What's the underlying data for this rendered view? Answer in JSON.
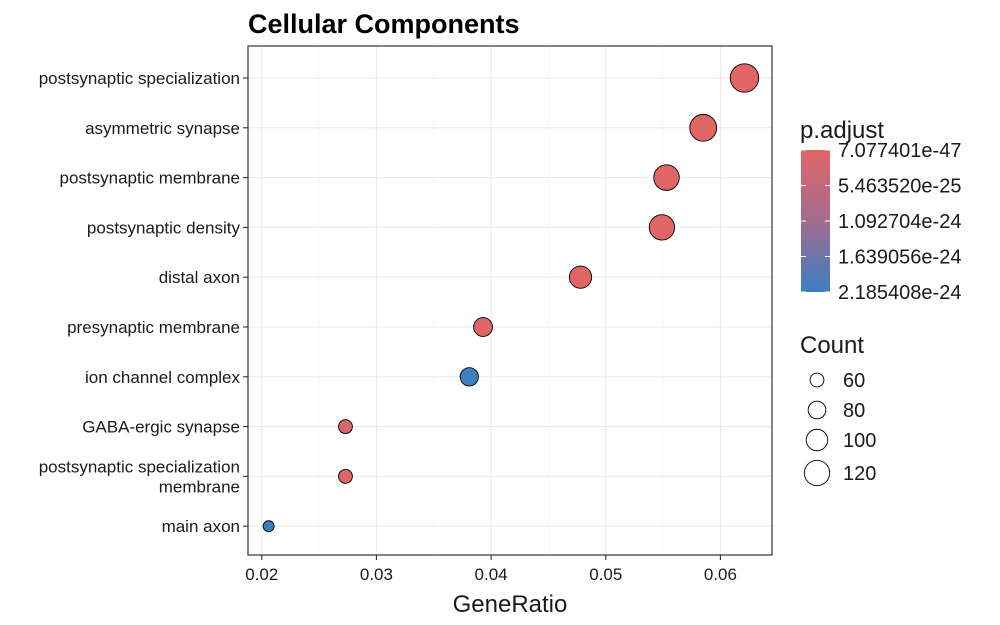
{
  "chart_data": {
    "type": "scatter",
    "title": "Cellular Components",
    "xlabel": "GeneRatio",
    "ylabel": "",
    "xlim": [
      0.0188,
      0.0645
    ],
    "x_ticks": [
      "0.02",
      "0.03",
      "0.04",
      "0.05",
      "0.06"
    ],
    "x_tick_values": [
      0.02,
      0.03,
      0.04,
      0.05,
      0.06
    ],
    "categories": [
      "postsynaptic specialization",
      "asymmetric synapse",
      "postsynaptic membrane",
      "postsynaptic density",
      "distal axon",
      "presynaptic membrane",
      "ion channel complex",
      "GABA-ergic synapse",
      "postsynaptic specialization membrane",
      "main axon"
    ],
    "category_lines": [
      [
        "postsynaptic specialization"
      ],
      [
        "asymmetric synapse"
      ],
      [
        "postsynaptic membrane"
      ],
      [
        "postsynaptic density"
      ],
      [
        "distal axon"
      ],
      [
        "presynaptic membrane"
      ],
      [
        "ion channel complex"
      ],
      [
        "GABA-ergic synapse"
      ],
      [
        "postsynaptic specialization",
        "membrane"
      ],
      [
        "main axon"
      ]
    ],
    "points": [
      {
        "category": "postsynaptic specialization",
        "x": 0.0621,
        "count": 136,
        "p_adjust": 7.1e-47
      },
      {
        "category": "asymmetric synapse",
        "x": 0.0585,
        "count": 128,
        "p_adjust": 1e-45
      },
      {
        "category": "postsynaptic membrane",
        "x": 0.0553,
        "count": 121,
        "p_adjust": 2e-40
      },
      {
        "category": "postsynaptic density",
        "x": 0.0549,
        "count": 120,
        "p_adjust": 1e-44
      },
      {
        "category": "distal axon",
        "x": 0.0478,
        "count": 104,
        "p_adjust": 1e-30
      },
      {
        "category": "presynaptic membrane",
        "x": 0.0393,
        "count": 86,
        "p_adjust": 1e-28
      },
      {
        "category": "ion channel complex",
        "x": 0.0381,
        "count": 83,
        "p_adjust": 2.1e-24
      },
      {
        "category": "GABA-ergic synapse",
        "x": 0.0273,
        "count": 60,
        "p_adjust": 1e-25
      },
      {
        "category": "postsynaptic specialization membrane",
        "x": 0.0273,
        "count": 60,
        "p_adjust": 5e-26
      },
      {
        "category": "main axon",
        "x": 0.0206,
        "count": 45,
        "p_adjust": 1e-22
      }
    ],
    "color_legend": {
      "title": "p.adjust",
      "labels": [
        "7.077401e-47",
        "5.463520e-25",
        "1.092704e-24",
        "1.639056e-24",
        "2.185408e-24"
      ],
      "min": 7.077401e-47,
      "max": 2.185408e-24,
      "low_color": "#e06666",
      "high_color": "#3a7fc1"
    },
    "size_legend": {
      "title": "Count",
      "values": [
        60,
        80,
        100,
        120
      ]
    },
    "grid": true,
    "legend_position": "right"
  }
}
